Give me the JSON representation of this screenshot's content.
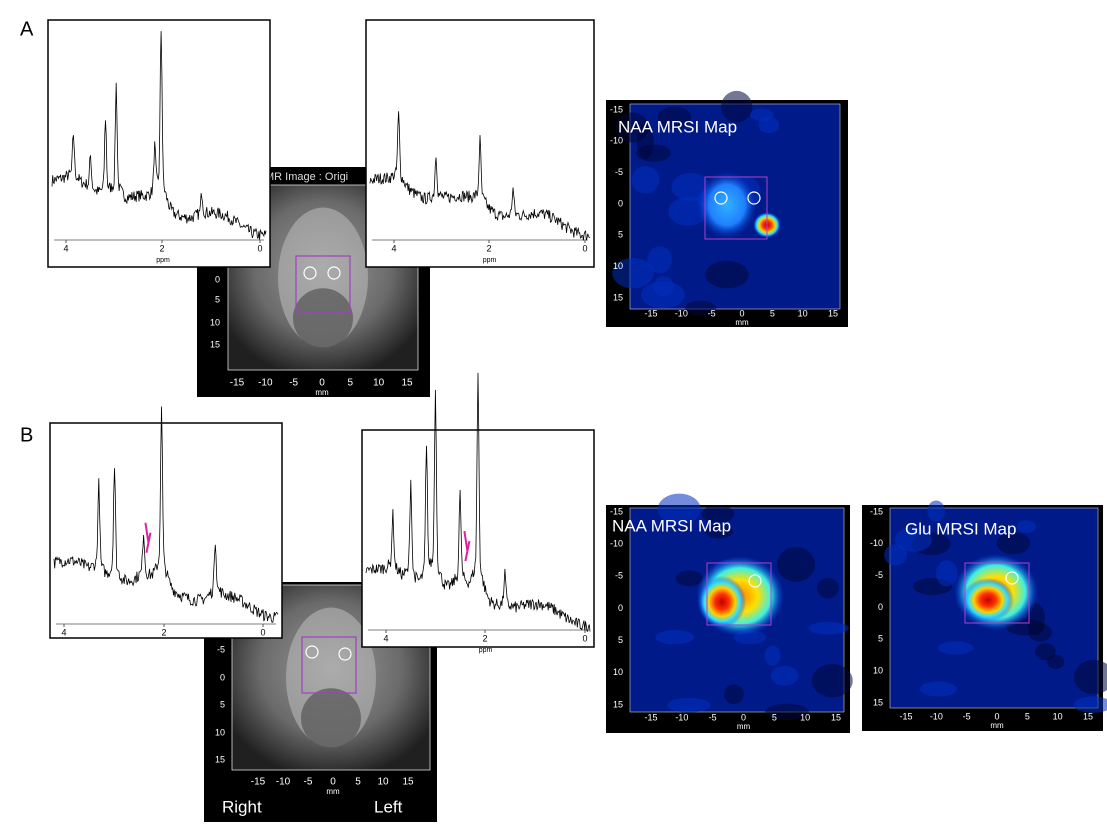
{
  "panels": [
    {
      "label": "A",
      "spectra": [
        {
          "xticks": [
            4,
            2,
            0
          ],
          "xlabel": "ppm"
        },
        {
          "xticks": [
            4,
            2,
            0
          ],
          "xlabel": "ppm"
        }
      ],
      "mri": {
        "title": "MR Image : Origi",
        "yticks": [
          0,
          5,
          10,
          15
        ],
        "xticks": [
          -15,
          -10,
          -5,
          0,
          5,
          10,
          15
        ],
        "xlabel": "mm"
      },
      "maps": [
        {
          "title": "NAA MRSI Map",
          "yticks": [
            -15,
            -10,
            -5,
            0,
            5,
            10,
            15
          ],
          "xticks": [
            -15,
            -10,
            -5,
            0,
            5,
            10,
            15
          ],
          "xlabel": "mm"
        }
      ]
    },
    {
      "label": "B",
      "spectra": [
        {
          "xticks": [
            4,
            2,
            0
          ]
        },
        {
          "xticks": [
            4,
            2,
            0
          ],
          "xlabel": "ppm"
        }
      ],
      "mri": {
        "yticks": [
          -5,
          0,
          5,
          10,
          15
        ],
        "xticks": [
          -15,
          -10,
          -5,
          0,
          5,
          10,
          15
        ],
        "xlabel": "mm",
        "sides": [
          "Right",
          "Left"
        ]
      },
      "maps": [
        {
          "title": "NAA MRSI Map",
          "yticks": [
            -15,
            -10,
            -5,
            0,
            5,
            10,
            15
          ],
          "xticks": [
            -15,
            -10,
            -5,
            0,
            5,
            10,
            15
          ],
          "xlabel": "mm"
        },
        {
          "title": "Glu MRSI Map",
          "yticks": [
            -15,
            -10,
            -5,
            0,
            5,
            10,
            15
          ],
          "xticks": [
            -15,
            -10,
            -5,
            0,
            5,
            10,
            15
          ],
          "xlabel": "mm"
        }
      ]
    }
  ]
}
